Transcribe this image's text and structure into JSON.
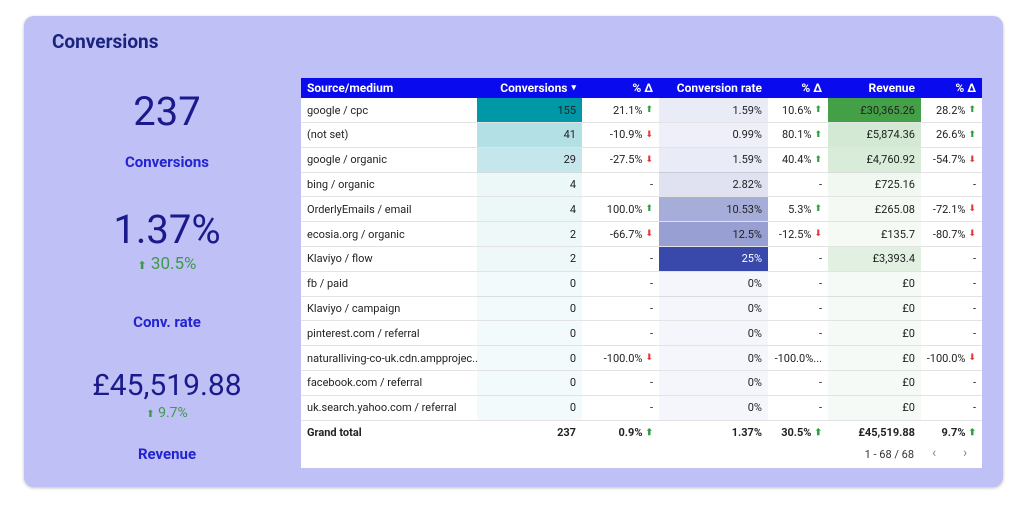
{
  "header": {
    "title": "Conversions"
  },
  "kpis": [
    {
      "value": "237",
      "label": "Conversions"
    },
    {
      "value": "1.37%",
      "change": "30.5%",
      "label": "Conv. rate"
    },
    {
      "value": "£45,519.88",
      "change": "9.7%",
      "label": "Revenue"
    }
  ],
  "table": {
    "columns": [
      "Source/medium",
      "Conversions",
      "% Δ",
      "Conversion rate",
      "% Δ",
      "Revenue",
      "% Δ"
    ],
    "rows": [
      [
        "google / cpc",
        "155",
        "21.1%",
        "1.59%",
        "10.6%",
        "£30,365.26",
        "28.2%"
      ],
      [
        "(not set)",
        "41",
        "-10.9%",
        "0.99%",
        "80.1%",
        "£5,874.36",
        "26.6%"
      ],
      [
        "google / organic",
        "29",
        "-27.5%",
        "1.59%",
        "40.4%",
        "£4,760.92",
        "-54.7%"
      ],
      [
        "bing / organic",
        "4",
        "-",
        "2.82%",
        "-",
        "£725.16",
        "-"
      ],
      [
        "OrderlyEmails / email",
        "4",
        "100.0%",
        "10.53%",
        "5.3%",
        "£265.08",
        "-72.1%"
      ],
      [
        "ecosia.org / organic",
        "2",
        "-66.7%",
        "12.5%",
        "-12.5%",
        "£135.7",
        "-80.7%"
      ],
      [
        "Klaviyo / flow",
        "2",
        "-",
        "25%",
        "-",
        "£3,393.4",
        "-"
      ],
      [
        "fb / paid",
        "0",
        "-",
        "0%",
        "-",
        "£0",
        "-"
      ],
      [
        "Klaviyo / campaign",
        "0",
        "-",
        "0%",
        "-",
        "£0",
        "-"
      ],
      [
        "pinterest.com / referral",
        "0",
        "-",
        "0%",
        "-",
        "£0",
        "-"
      ],
      [
        "naturalliving-co-uk.cdn.ampprojec...",
        "0",
        "-100.0%",
        "0%",
        "-100.0%...",
        "£0",
        "-100.0%"
      ],
      [
        "facebook.com / referral",
        "0",
        "-",
        "0%",
        "-",
        "£0",
        "-"
      ],
      [
        "uk.search.yahoo.com / referral",
        "0",
        "-",
        "0%",
        "-",
        "£0",
        "-"
      ]
    ],
    "total": [
      "Grand total",
      "237",
      "0.9%",
      "1.37%",
      "30.5%",
      "£45,519.88",
      "9.7%"
    ],
    "pagination": "1 - 68 / 68"
  }
}
